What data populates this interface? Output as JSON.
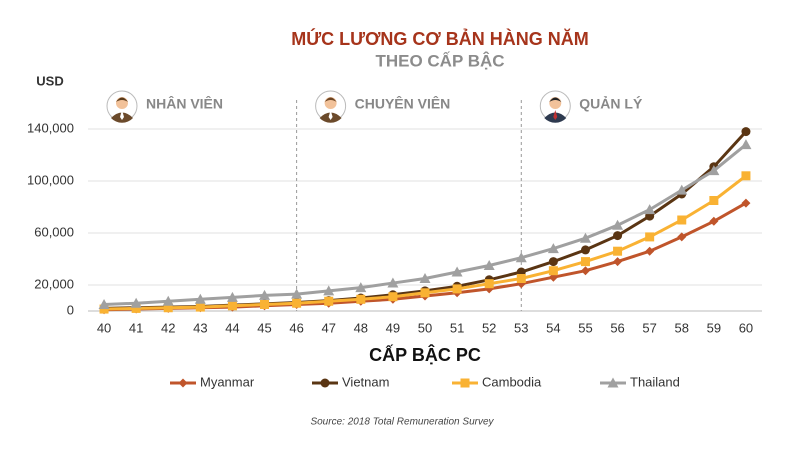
{
  "chart_data": {
    "type": "line",
    "title": "MỨC LƯƠNG CƠ BẢN HÀNG NĂM",
    "subtitle": "THEO CẤP BẬC",
    "y_label": "USD",
    "x_label": "CẤP BẬC PC",
    "source": "Source: 2018 Total Remuneration Survey",
    "x": [
      40,
      41,
      42,
      43,
      44,
      45,
      46,
      47,
      48,
      49,
      50,
      51,
      52,
      53,
      54,
      55,
      56,
      57,
      58,
      59,
      60
    ],
    "xlim": [
      39.5,
      60.5
    ],
    "xticks": [
      40,
      41,
      42,
      43,
      44,
      45,
      46,
      47,
      48,
      49,
      50,
      51,
      52,
      53,
      54,
      55,
      56,
      57,
      58,
      59,
      60
    ],
    "ylim": [
      0,
      150000
    ],
    "yticks": [
      0,
      {
        "value": 20000,
        "label": "20,000"
      },
      {
        "value": 60000,
        "label": "60,000"
      },
      {
        "value": 100000,
        "label": "100,000"
      },
      {
        "value": 140000,
        "label": "140,000"
      }
    ],
    "grid": true,
    "dividers": [
      46,
      53
    ],
    "bands": [
      "NHÂN VIÊN",
      "CHUYÊN VIÊN",
      "QUẢN LÝ"
    ],
    "legend": "bottom",
    "series": [
      {
        "name": "Myanmar",
        "color": "#c0552b",
        "marker": "diamond",
        "values": [
          1000,
          1500,
          2000,
          2500,
          3000,
          4000,
          5000,
          6000,
          7500,
          9000,
          11500,
          14000,
          17000,
          21000,
          26000,
          31000,
          38000,
          46000,
          57000,
          69000,
          83000
        ]
      },
      {
        "name": "Vietnam",
        "color": "#5a3513",
        "marker": "circle",
        "values": [
          2000,
          2500,
          3000,
          3500,
          4500,
          5500,
          6500,
          8000,
          10000,
          12500,
          15500,
          19000,
          24000,
          30000,
          38000,
          47000,
          58000,
          73000,
          90000,
          111000,
          138000
        ]
      },
      {
        "name": "Cambodia",
        "color": "#f9b233",
        "marker": "square",
        "values": [
          1500,
          2000,
          2500,
          3000,
          4000,
          5000,
          6000,
          7500,
          9000,
          11000,
          14000,
          17000,
          21000,
          25000,
          31000,
          38000,
          46000,
          57000,
          70000,
          85000,
          104000
        ]
      },
      {
        "name": "Thailand",
        "color": "#a0a0a0",
        "marker": "triangle",
        "values": [
          5000,
          6000,
          7500,
          9000,
          10500,
          12000,
          13000,
          15500,
          18000,
          21500,
          25000,
          30000,
          35000,
          41000,
          48000,
          56000,
          66000,
          78000,
          93000,
          108000,
          128000
        ]
      }
    ]
  }
}
